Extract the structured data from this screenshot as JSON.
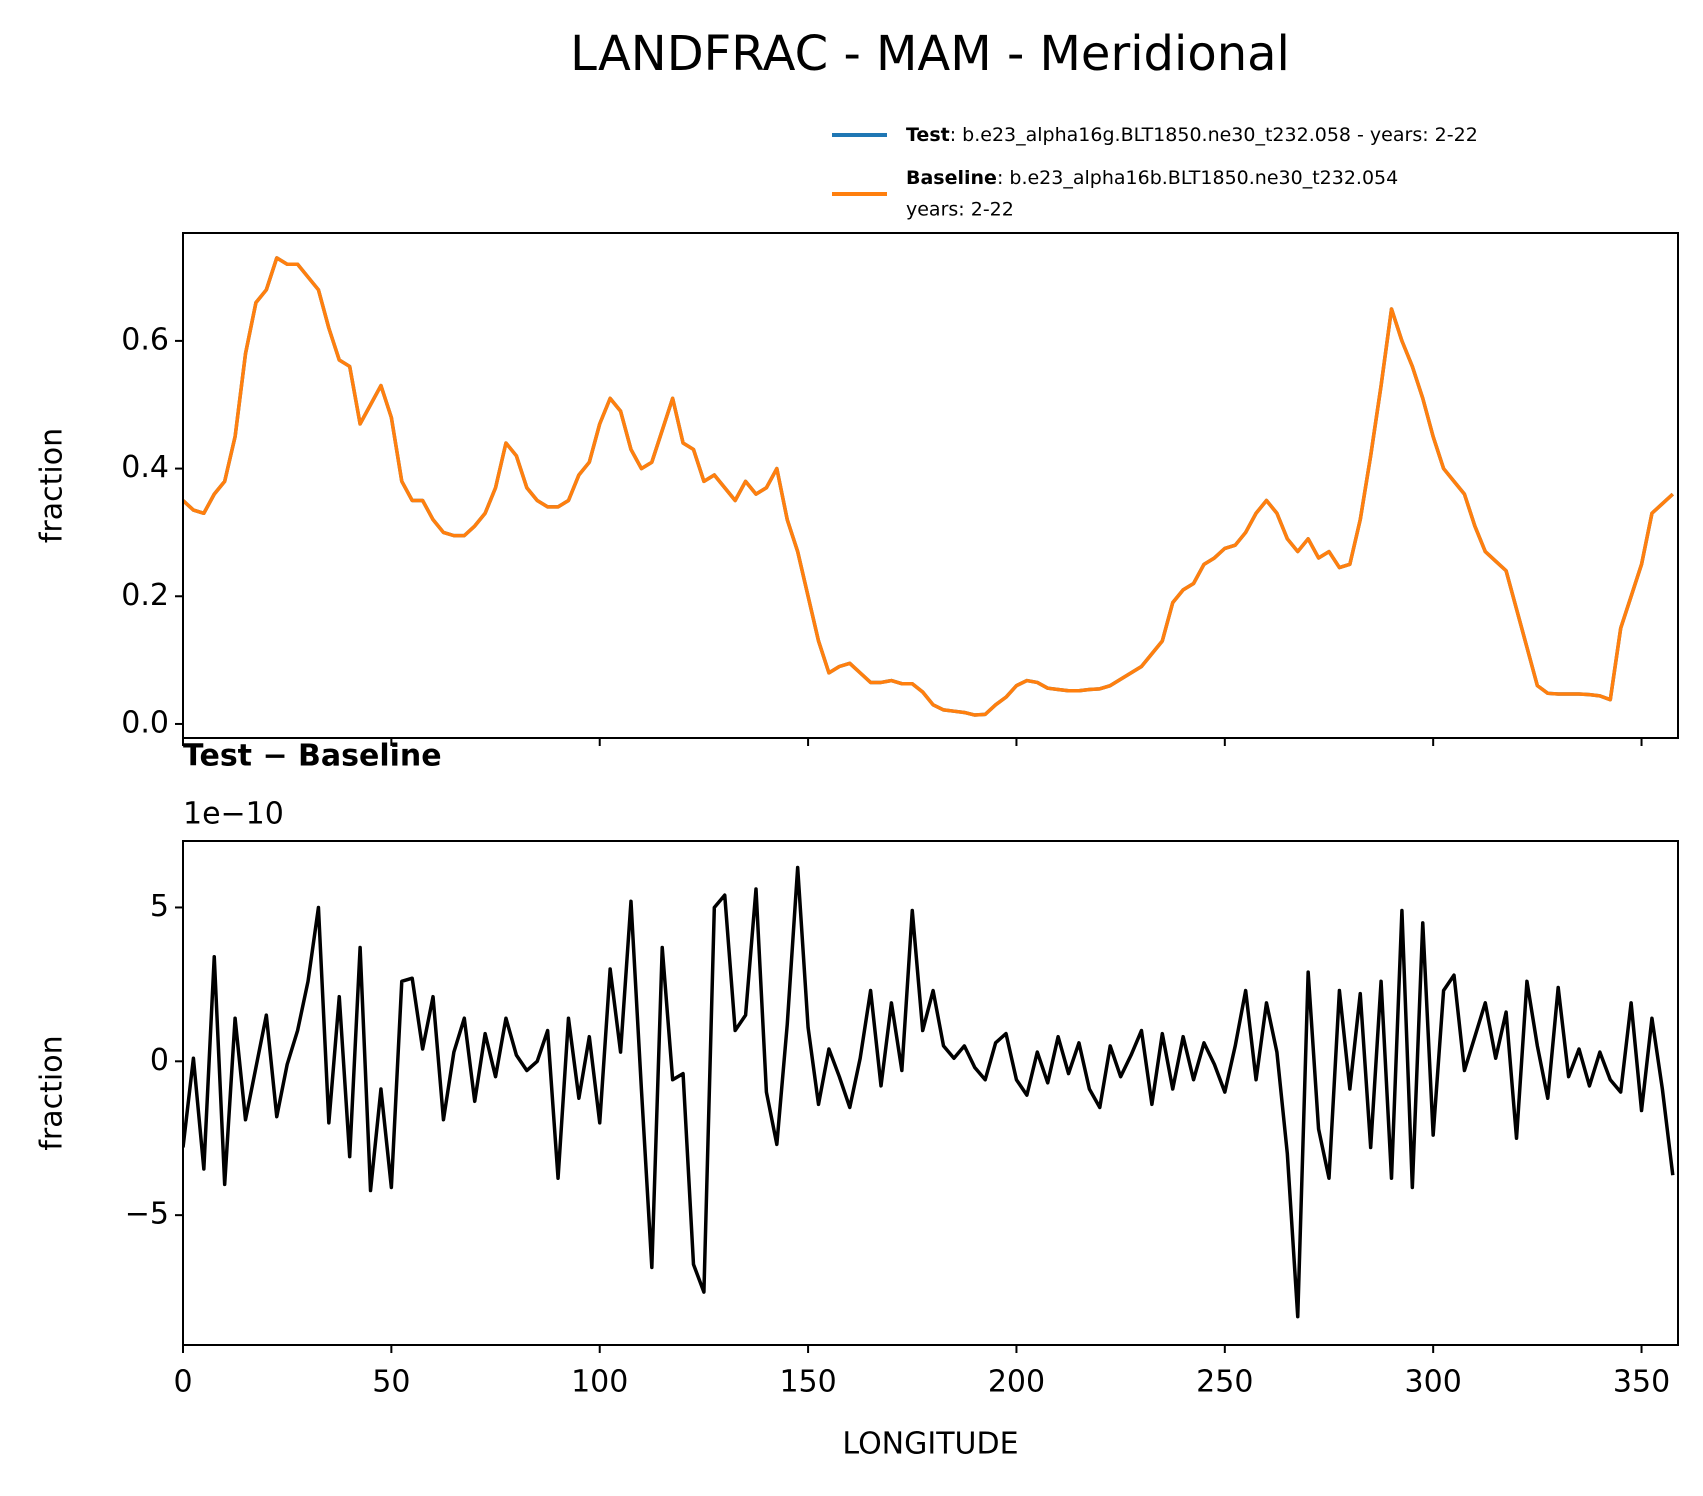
{
  "title": "LANDFRAC - MAM - Meridional",
  "chart_data": [
    {
      "type": "line",
      "ylabel": "fraction",
      "x": [
        0,
        2.5,
        5,
        7.5,
        10,
        12.5,
        15,
        17.5,
        20,
        22.5,
        25,
        27.5,
        30,
        32.5,
        35,
        37.5,
        40,
        42.5,
        45,
        47.5,
        50,
        52.5,
        55,
        57.5,
        60,
        62.5,
        65,
        67.5,
        70,
        72.5,
        75,
        77.5,
        80,
        82.5,
        85,
        87.5,
        90,
        92.5,
        95,
        97.5,
        100,
        102.5,
        105,
        107.5,
        110,
        112.5,
        115,
        117.5,
        120,
        122.5,
        125,
        127.5,
        130,
        132.5,
        135,
        137.5,
        140,
        142.5,
        145,
        147.5,
        150,
        152.5,
        155,
        157.5,
        160,
        162.5,
        165,
        167.5,
        170,
        172.5,
        175,
        177.5,
        180,
        182.5,
        185,
        187.5,
        190,
        192.5,
        195,
        197.5,
        200,
        202.5,
        205,
        207.5,
        210,
        212.5,
        215,
        217.5,
        220,
        222.5,
        225,
        227.5,
        230,
        232.5,
        235,
        237.5,
        240,
        242.5,
        245,
        247.5,
        250,
        252.5,
        255,
        257.5,
        260,
        262.5,
        265,
        267.5,
        270,
        272.5,
        275,
        277.5,
        280,
        282.5,
        285,
        287.5,
        290,
        292.5,
        295,
        297.5,
        300,
        302.5,
        305,
        307.5,
        310,
        312.5,
        315,
        317.5,
        320,
        322.5,
        325,
        327.5,
        330,
        332.5,
        335,
        337.5,
        340,
        342.5,
        345,
        347.5,
        350,
        352.5,
        355,
        357.5
      ],
      "series": [
        {
          "name": "Test",
          "description": [
            ": b.e23_alpha16g.BLT1850.ne30_t232.058 - years: 2-22"
          ],
          "color": "#1f77b4",
          "values": [
            0.35,
            0.335,
            0.33,
            0.36,
            0.38,
            0.45,
            0.58,
            0.66,
            0.68,
            0.73,
            0.72,
            0.72,
            0.7,
            0.68,
            0.62,
            0.57,
            0.56,
            0.47,
            0.5,
            0.53,
            0.48,
            0.38,
            0.35,
            0.35,
            0.32,
            0.3,
            0.295,
            0.295,
            0.31,
            0.33,
            0.37,
            0.44,
            0.42,
            0.37,
            0.35,
            0.34,
            0.34,
            0.35,
            0.39,
            0.41,
            0.47,
            0.51,
            0.49,
            0.43,
            0.4,
            0.41,
            0.46,
            0.51,
            0.44,
            0.43,
            0.38,
            0.39,
            0.37,
            0.35,
            0.38,
            0.36,
            0.37,
            0.4,
            0.32,
            0.27,
            0.2,
            0.13,
            0.08,
            0.09,
            0.095,
            0.08,
            0.065,
            0.065,
            0.068,
            0.063,
            0.063,
            0.05,
            0.03,
            0.022,
            0.02,
            0.018,
            0.014,
            0.015,
            0.03,
            0.042,
            0.06,
            0.068,
            0.065,
            0.056,
            0.054,
            0.052,
            0.052,
            0.054,
            0.055,
            0.06,
            0.07,
            0.08,
            0.09,
            0.11,
            0.13,
            0.19,
            0.21,
            0.22,
            0.25,
            0.26,
            0.275,
            0.28,
            0.3,
            0.33,
            0.35,
            0.33,
            0.29,
            0.27,
            0.29,
            0.26,
            0.27,
            0.245,
            0.25,
            0.32,
            0.42,
            0.53,
            0.65,
            0.6,
            0.56,
            0.51,
            0.45,
            0.4,
            0.38,
            0.36,
            0.31,
            0.27,
            0.255,
            0.24,
            0.18,
            0.12,
            0.06,
            0.048,
            0.047,
            0.047,
            0.047,
            0.046,
            0.044,
            0.038,
            0.15,
            0.2,
            0.25,
            0.33,
            0.345,
            0.36
          ]
        },
        {
          "name": "Baseline",
          "description": [
            ": b.e23_alpha16b.BLT1850.ne30_t232.054",
            "years: 2-22"
          ],
          "color": "#ff7f0e",
          "values": [
            0.35,
            0.335,
            0.33,
            0.36,
            0.38,
            0.45,
            0.58,
            0.66,
            0.68,
            0.73,
            0.72,
            0.72,
            0.7,
            0.68,
            0.62,
            0.57,
            0.56,
            0.47,
            0.5,
            0.53,
            0.48,
            0.38,
            0.35,
            0.35,
            0.32,
            0.3,
            0.295,
            0.295,
            0.31,
            0.33,
            0.37,
            0.44,
            0.42,
            0.37,
            0.35,
            0.34,
            0.34,
            0.35,
            0.39,
            0.41,
            0.47,
            0.51,
            0.49,
            0.43,
            0.4,
            0.41,
            0.46,
            0.51,
            0.44,
            0.43,
            0.38,
            0.39,
            0.37,
            0.35,
            0.38,
            0.36,
            0.37,
            0.4,
            0.32,
            0.27,
            0.2,
            0.13,
            0.08,
            0.09,
            0.095,
            0.08,
            0.065,
            0.065,
            0.068,
            0.063,
            0.063,
            0.05,
            0.03,
            0.022,
            0.02,
            0.018,
            0.014,
            0.015,
            0.03,
            0.042,
            0.06,
            0.068,
            0.065,
            0.056,
            0.054,
            0.052,
            0.052,
            0.054,
            0.055,
            0.06,
            0.07,
            0.08,
            0.09,
            0.11,
            0.13,
            0.19,
            0.21,
            0.22,
            0.25,
            0.26,
            0.275,
            0.28,
            0.3,
            0.33,
            0.35,
            0.33,
            0.29,
            0.27,
            0.29,
            0.26,
            0.27,
            0.245,
            0.25,
            0.32,
            0.42,
            0.53,
            0.65,
            0.6,
            0.56,
            0.51,
            0.45,
            0.4,
            0.38,
            0.36,
            0.31,
            0.27,
            0.255,
            0.24,
            0.18,
            0.12,
            0.06,
            0.048,
            0.047,
            0.047,
            0.047,
            0.046,
            0.044,
            0.038,
            0.15,
            0.2,
            0.25,
            0.33,
            0.345,
            0.36
          ]
        }
      ],
      "xlim": [
        0,
        358.75
      ],
      "ylim": [
        -0.022,
        0.769
      ],
      "xticks": [
        0,
        50,
        100,
        150,
        200,
        250,
        300,
        350
      ],
      "yticks": [
        {
          "value": 0,
          "label": "0.0"
        },
        0.2,
        0.4,
        0.6
      ]
    },
    {
      "type": "line",
      "title": "Test − Baseline",
      "offset_label": "1e−10",
      "ylabel": "fraction",
      "xlabel": "LONGITUDE",
      "x": [
        0,
        2.5,
        5,
        7.5,
        10,
        12.5,
        15,
        17.5,
        20,
        22.5,
        25,
        27.5,
        30,
        32.5,
        35,
        37.5,
        40,
        42.5,
        45,
        47.5,
        50,
        52.5,
        55,
        57.5,
        60,
        62.5,
        65,
        67.5,
        70,
        72.5,
        75,
        77.5,
        80,
        82.5,
        85,
        87.5,
        90,
        92.5,
        95,
        97.5,
        100,
        102.5,
        105,
        107.5,
        110,
        112.5,
        115,
        117.5,
        120,
        122.5,
        125,
        127.5,
        130,
        132.5,
        135,
        137.5,
        140,
        142.5,
        145,
        147.5,
        150,
        152.5,
        155,
        157.5,
        160,
        162.5,
        165,
        167.5,
        170,
        172.5,
        175,
        177.5,
        180,
        182.5,
        185,
        187.5,
        190,
        192.5,
        195,
        197.5,
        200,
        202.5,
        205,
        207.5,
        210,
        212.5,
        215,
        217.5,
        220,
        222.5,
        225,
        227.5,
        230,
        232.5,
        235,
        237.5,
        240,
        242.5,
        245,
        247.5,
        250,
        252.5,
        255,
        257.5,
        260,
        262.5,
        265,
        267.5,
        270,
        272.5,
        275,
        277.5,
        280,
        282.5,
        285,
        287.5,
        290,
        292.5,
        295,
        297.5,
        300,
        302.5,
        305,
        307.5,
        310,
        312.5,
        315,
        317.5,
        320,
        322.5,
        325,
        327.5,
        330,
        332.5,
        335,
        337.5,
        340,
        342.5,
        345,
        347.5,
        350,
        352.5,
        355,
        357.5
      ],
      "color": "#000000",
      "values": [
        -2.8,
        0.1,
        -3.5,
        3.4,
        -4.0,
        1.4,
        -1.9,
        -0.2,
        1.5,
        -1.8,
        -0.1,
        1.0,
        2.6,
        5.0,
        -2.0,
        2.1,
        -3.1,
        3.7,
        -4.2,
        -0.9,
        -4.1,
        2.6,
        2.7,
        0.4,
        2.1,
        -1.9,
        0.3,
        1.4,
        -1.3,
        0.9,
        -0.5,
        1.4,
        0.2,
        -0.3,
        0.0,
        1.0,
        -3.8,
        1.4,
        -1.2,
        0.8,
        -2.0,
        3.0,
        0.3,
        5.2,
        -0.9,
        -6.7,
        3.7,
        -0.6,
        -0.4,
        -6.6,
        -7.5,
        5.0,
        5.4,
        1.0,
        1.5,
        5.6,
        -1.0,
        -2.7,
        1.2,
        6.3,
        1.1,
        -1.4,
        0.4,
        -0.5,
        -1.5,
        0.1,
        2.3,
        -0.8,
        1.9,
        -0.3,
        4.9,
        1.0,
        2.3,
        0.5,
        0.1,
        0.5,
        -0.2,
        -0.6,
        0.6,
        0.9,
        -0.6,
        -1.1,
        0.3,
        -0.7,
        0.8,
        -0.4,
        0.6,
        -0.9,
        -1.5,
        0.5,
        -0.5,
        0.2,
        1.0,
        -1.4,
        0.9,
        -0.9,
        0.8,
        -0.6,
        0.6,
        -0.1,
        -1.0,
        0.5,
        2.3,
        -0.6,
        1.9,
        0.3,
        -3.0,
        -8.3,
        2.9,
        -2.2,
        -3.8,
        2.3,
        -0.9,
        2.2,
        -2.8,
        2.6,
        -3.8,
        4.9,
        -4.1,
        4.5,
        -2.4,
        2.3,
        2.8,
        -0.3,
        0.8,
        1.9,
        0.1,
        1.6,
        -2.5,
        2.6,
        0.5,
        -1.2,
        2.4,
        -0.5,
        0.4,
        -0.8,
        0.3,
        -0.6,
        -1.0,
        1.9,
        -1.6,
        1.4,
        -0.9,
        -3.7
      ],
      "xlim": [
        0,
        358.75
      ],
      "ylim": [
        -9.22,
        7.16
      ],
      "xticks": [
        0,
        50,
        100,
        150,
        200,
        250,
        300,
        350
      ],
      "yticks": [
        {
          "value": -5,
          "label": "−5"
        },
        0,
        5
      ]
    }
  ]
}
